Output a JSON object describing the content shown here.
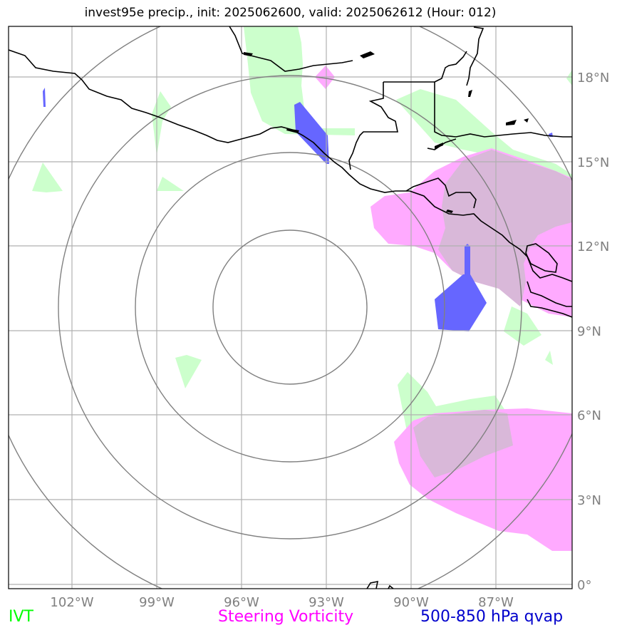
{
  "title": "invest95e precip., init: 2025062600, valid: 2025062612 (Hour: 012)",
  "axes": {
    "lon_labels": [
      "102°W",
      "99°W",
      "96°W",
      "93°W",
      "90°W",
      "87°W"
    ],
    "lat_labels": [
      "0°",
      "3°N",
      "6°N",
      "9°N",
      "12°N",
      "15°N",
      "18°N"
    ]
  },
  "legend": [
    {
      "label": "IVT",
      "color": "#00ff00"
    },
    {
      "label": "Steering Vorticity",
      "color": "#ff00ff"
    },
    {
      "label": "500-850 hPa qvap",
      "color": "#0000cc"
    }
  ],
  "colors": {
    "ivt_fill": "#ccffcc",
    "vorticity_fill": "#ffaaff",
    "overlap_fill": "#d9b8d9",
    "qvap_fill": "#6666ff",
    "range_rings": "#808080",
    "gridlines": "#b0b0b0",
    "coastline": "#000000"
  }
}
